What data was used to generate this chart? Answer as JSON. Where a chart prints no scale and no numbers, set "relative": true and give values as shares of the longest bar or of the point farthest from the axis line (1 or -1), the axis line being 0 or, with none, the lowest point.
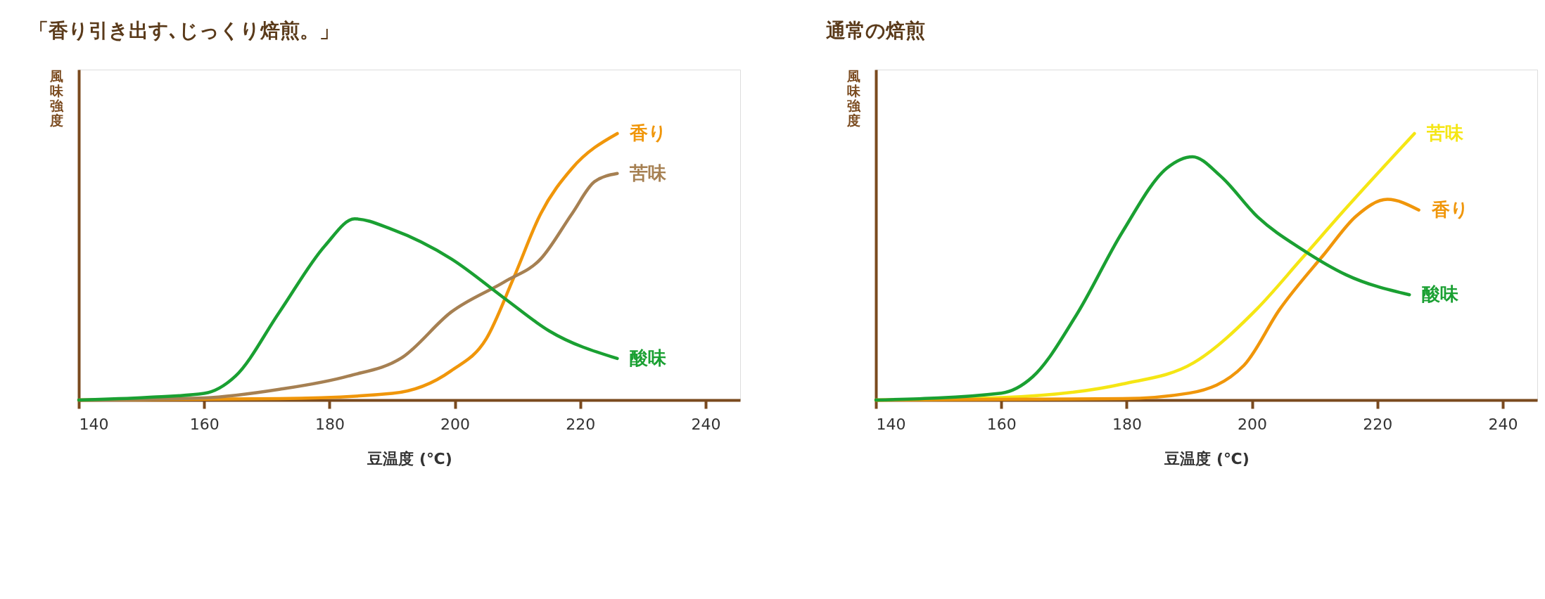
{
  "chart_data": [
    {
      "type": "line",
      "title": "「香り引き出す､じっくり焙煎。」",
      "xlabel": "豆温度 (℃)",
      "ylabel": "風味強度",
      "relative": true,
      "xlim": [
        140,
        245.5
      ],
      "xticks": [
        140,
        160,
        180,
        200,
        220,
        240
      ],
      "grid": false,
      "legend": false,
      "marker": "none",
      "line_style": "solid",
      "series": [
        {
          "name": "香り",
          "color": "#f0960a",
          "x": [
            140,
            172,
            190,
            199.4,
            205,
            209.4,
            213.7,
            218.7,
            225.9
          ],
          "values": [
            0,
            0.005,
            0.025,
            0.11,
            0.23,
            0.46,
            0.7,
            0.87,
            1
          ]
        },
        {
          "name": "苦味",
          "color": "#a68052",
          "x": [
            140,
            160,
            172,
            183,
            191.6,
            199.4,
            208,
            213.7,
            218.7,
            222.3,
            225.9
          ],
          "values": [
            0,
            0.008,
            0.04,
            0.09,
            0.16,
            0.33,
            0.445,
            0.53,
            0.7,
            0.82,
            0.85
          ]
        },
        {
          "name": "酸味",
          "color": "#1aa032",
          "x": [
            140,
            150.9,
            160,
            165,
            172,
            179.3,
            184,
            190,
            199.4,
            208,
            215,
            225.9
          ],
          "values": [
            0,
            0.01,
            0.025,
            0.09,
            0.33,
            0.58,
            0.68,
            0.64,
            0.53,
            0.38,
            0.26,
            0.156
          ]
        }
      ]
    },
    {
      "type": "line",
      "title": "通常の焙煎",
      "xlabel": "豆温度 (℃)",
      "ylabel": "風味強度",
      "relative": true,
      "xlim": [
        140,
        245.5
      ],
      "xticks": [
        140,
        160,
        180,
        200,
        220,
        240
      ],
      "grid": false,
      "legend": false,
      "marker": "none",
      "line_style": "solid",
      "series": [
        {
          "name": "苦味",
          "color": "#f5e614",
          "x": [
            140,
            160,
            179.3,
            190.7,
            200.7,
            207.9,
            215,
            225.9
          ],
          "values": [
            0,
            0.009,
            0.06,
            0.14,
            0.34,
            0.53,
            0.72,
            1
          ]
        },
        {
          "name": "香り",
          "color": "#f0960a",
          "x": [
            140,
            179.3,
            190,
            198.7,
            204.4,
            211.6,
            216.6,
            221.6,
            226.6
          ],
          "values": [
            0,
            0.005,
            0.026,
            0.13,
            0.34,
            0.55,
            0.69,
            0.753,
            0.713
          ]
        },
        {
          "name": "酸味",
          "color": "#1aa032",
          "x": [
            140,
            160,
            165,
            172,
            179.3,
            186.4,
            190.5,
            195,
            200.9,
            208,
            215,
            225.1
          ],
          "values": [
            0,
            0.026,
            0.087,
            0.32,
            0.63,
            0.87,
            0.913,
            0.84,
            0.687,
            0.565,
            0.47,
            0.395
          ]
        }
      ]
    }
  ]
}
